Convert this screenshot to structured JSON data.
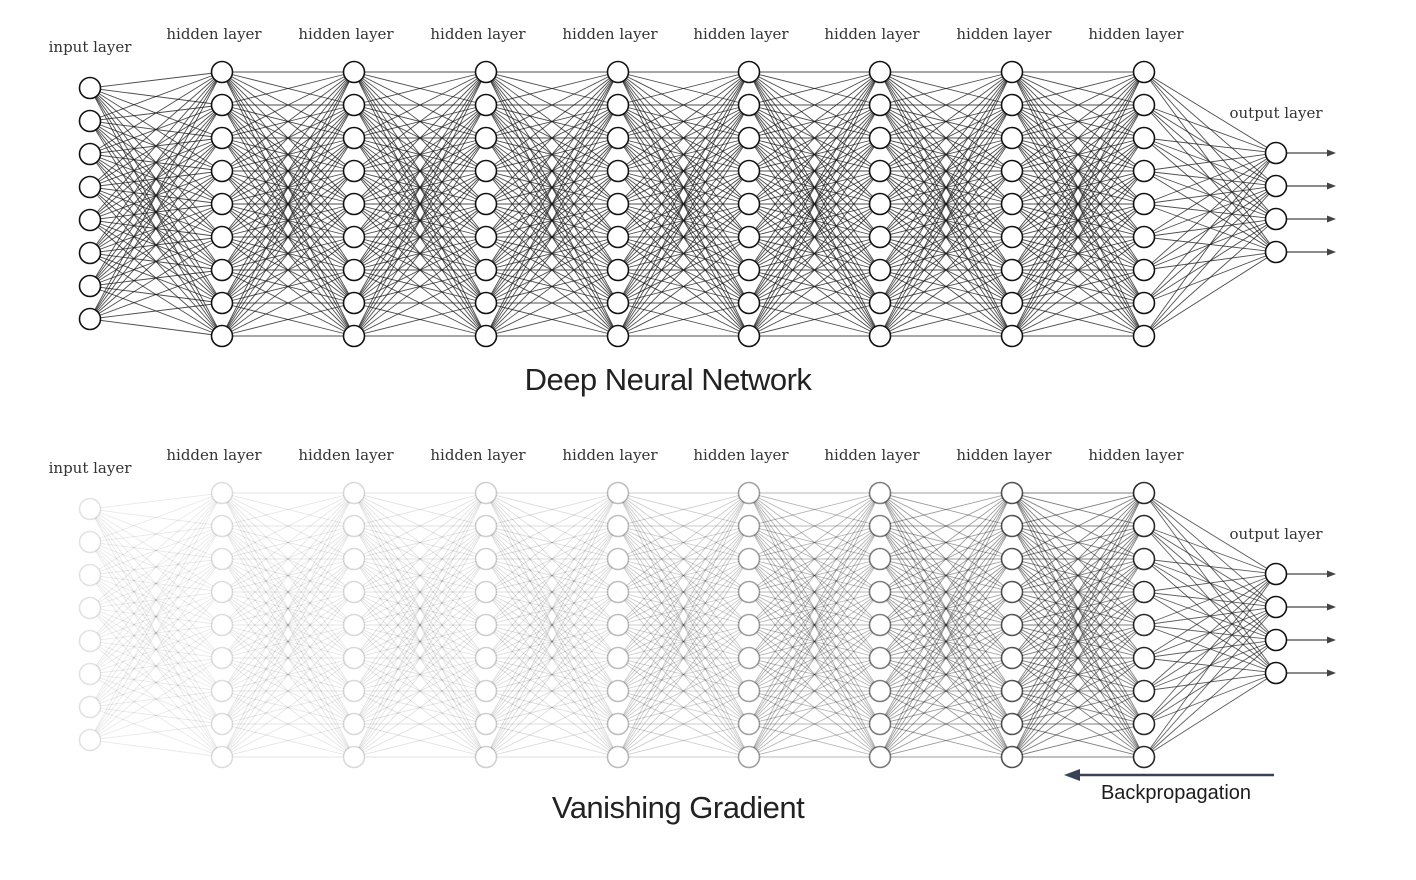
{
  "diagrams": [
    {
      "title": "Deep Neural Network",
      "input_label": "input layer",
      "hidden_label": "hidden layer",
      "output_label": "output layer",
      "layer_neurons": [
        8,
        9,
        9,
        9,
        9,
        9,
        9,
        9,
        9,
        4
      ],
      "layer_opacity": [
        1,
        1,
        1,
        1,
        1,
        1,
        1,
        1,
        1,
        1
      ],
      "output_arrows": 4
    },
    {
      "title": "Vanishing Gradient",
      "input_label": "input layer",
      "hidden_label": "hidden layer",
      "output_label": "output layer",
      "layer_neurons": [
        8,
        9,
        9,
        9,
        9,
        9,
        9,
        9,
        9,
        4
      ],
      "layer_opacity": [
        0.12,
        0.14,
        0.16,
        0.2,
        0.28,
        0.4,
        0.55,
        0.72,
        0.9,
        1
      ],
      "output_arrows": 4,
      "backprop_label": "Backpropagation"
    }
  ],
  "colors": {
    "line": "#111111",
    "node_fill": "#ffffff",
    "arrow": "#3a4254"
  }
}
